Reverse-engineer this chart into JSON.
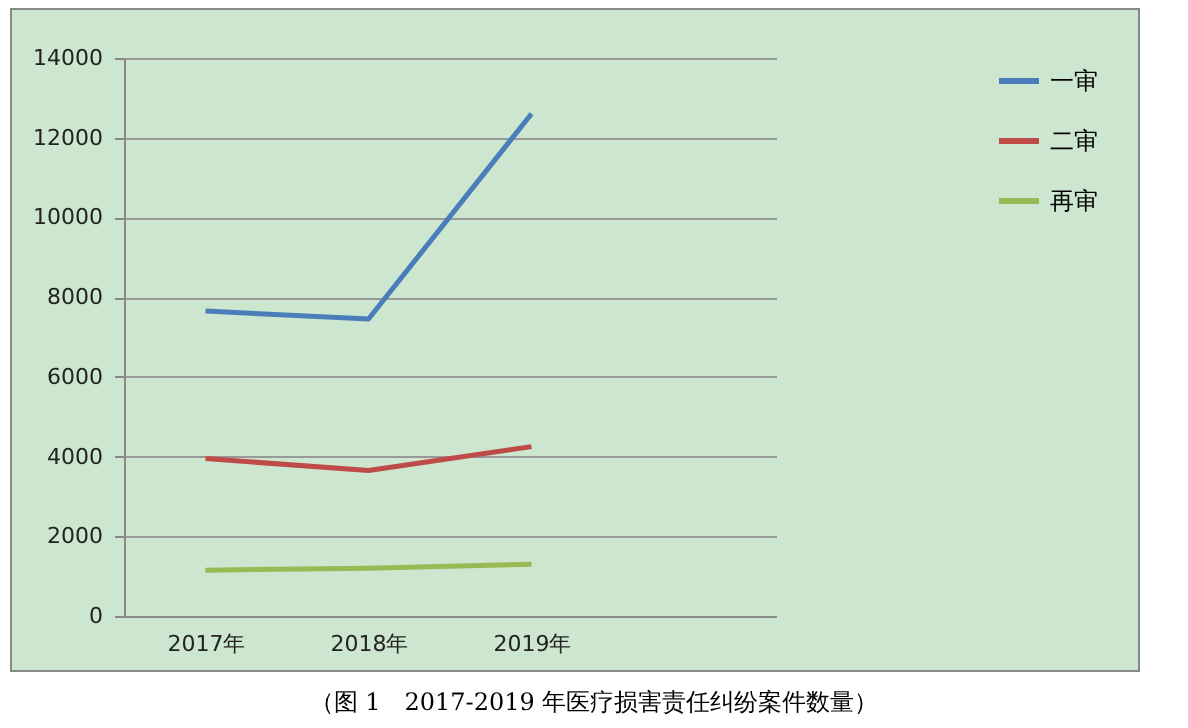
{
  "chart_data": {
    "type": "line",
    "categories": [
      "2017年",
      "2018年",
      "2019年",
      null
    ],
    "series": [
      {
        "name": "一审",
        "color": "#4a7ebb",
        "values": [
          7650,
          7450,
          12600,
          null
        ]
      },
      {
        "name": "二审",
        "color": "#be4b48",
        "values": [
          3950,
          3650,
          4250,
          null
        ]
      },
      {
        "name": "再审",
        "color": "#98b954",
        "values": [
          1150,
          1200,
          1300,
          null
        ]
      }
    ],
    "ylim": [
      0,
      14000
    ],
    "yticks": [
      0,
      2000,
      4000,
      6000,
      8000,
      10000,
      12000,
      14000
    ],
    "grid": "y",
    "legend": "right",
    "marker": "none",
    "line_style": "solid",
    "annotations": [
      "（图 1　2017-2019 年医疗损害责任纠纷案件数量）"
    ]
  }
}
